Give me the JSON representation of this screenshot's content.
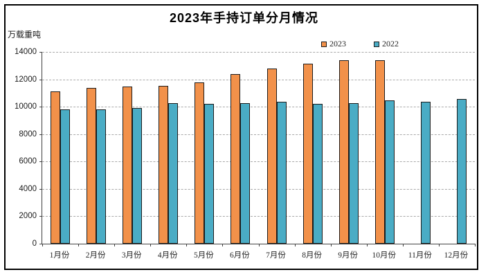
{
  "header": {
    "title": "2023年手持订单分月情况",
    "unit_label": "万载重吨"
  },
  "legend": {
    "items": [
      {
        "label": "2023",
        "color": "#F2914A"
      },
      {
        "label": "2022",
        "color": "#4AACC5"
      }
    ]
  },
  "chart_data": {
    "type": "bar",
    "title": "2023年手持订单分月情况",
    "ylabel": "万载重吨",
    "categories": [
      "1月份",
      "2月份",
      "3月份",
      "4月份",
      "5月份",
      "6月份",
      "7月份",
      "8月份",
      "9月份",
      "10月份",
      "11月份",
      "12月份"
    ],
    "series": [
      {
        "name": "2023",
        "color": "#F2914A",
        "values": [
          11100,
          11350,
          11450,
          11500,
          11800,
          12400,
          12800,
          13150,
          13400,
          13400,
          null,
          null
        ]
      },
      {
        "name": "2022",
        "color": "#4AACC5",
        "values": [
          9800,
          9800,
          9900,
          10250,
          10200,
          10250,
          10350,
          10200,
          10250,
          10450,
          10350,
          10550
        ]
      }
    ],
    "ylim": [
      0,
      14000
    ],
    "yticks": [
      0,
      2000,
      4000,
      6000,
      8000,
      10000,
      12000,
      14000
    ],
    "grid": "horizontal-dashed",
    "legend_position": "top-right",
    "bar_border_color": "#1c1c1c"
  }
}
